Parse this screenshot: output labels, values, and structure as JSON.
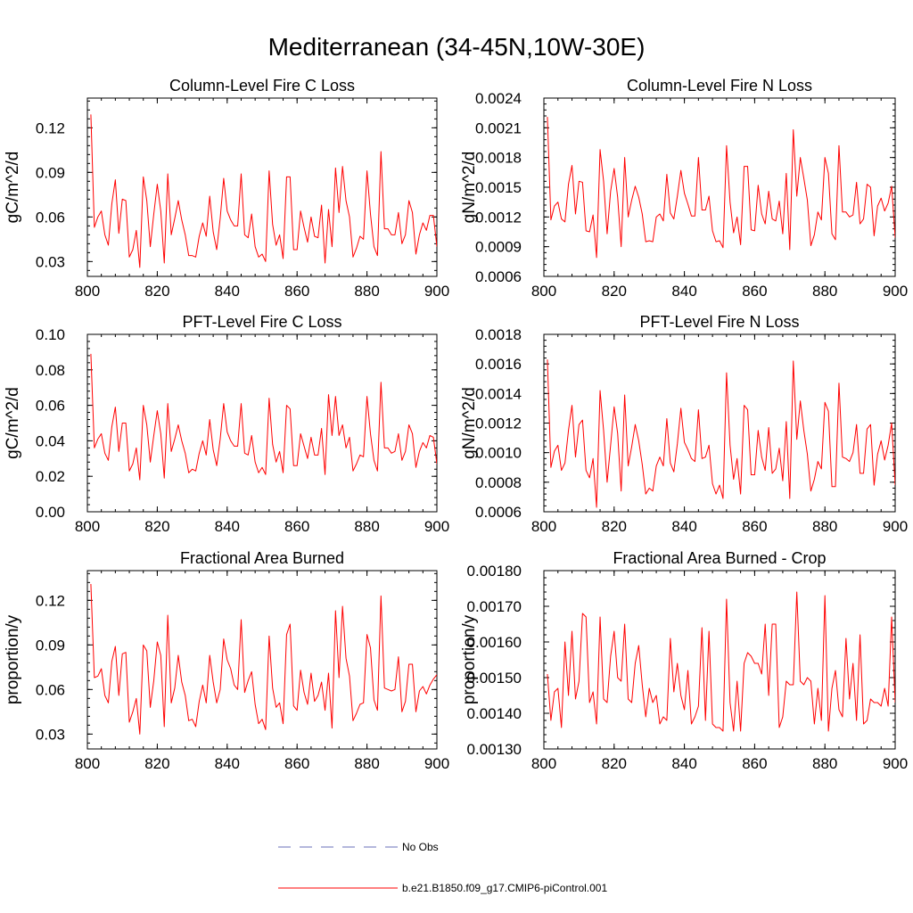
{
  "title": "Mediterranean (34-45N,10W-30E)",
  "colors": {
    "model": "#ff0000",
    "obs": "#6a6fb8",
    "axis": "#000000"
  },
  "legend": [
    {
      "label": "No Obs",
      "style": "dashed",
      "color": "#6a6fb8"
    },
    {
      "label": "b.e21.B1850.f09_g17.CMIP6-piControl.001",
      "style": "solid",
      "color": "#ff0000"
    }
  ],
  "chart_data": [
    {
      "type": "line",
      "title": "Column-Level Fire C Loss",
      "ylabel": "gC/m^2/d",
      "xlim": [
        800,
        900
      ],
      "ylim": [
        0.02,
        0.14
      ],
      "xticks": [
        800,
        820,
        840,
        860,
        880,
        900
      ],
      "xtick_labels": [
        "800",
        "820",
        "840",
        "860",
        "880",
        "900"
      ],
      "yticks": [
        0.03,
        0.06,
        0.09,
        0.12
      ],
      "ytick_labels": [
        "0.03",
        "0.06",
        "0.09",
        "0.12"
      ],
      "series": [
        {
          "name": "b.e21.B1850.f09_g17.CMIP6-piControl.001",
          "x0": 801,
          "values": [
            0.129,
            0.053,
            0.06,
            0.064,
            0.048,
            0.041,
            0.069,
            0.085,
            0.049,
            0.072,
            0.071,
            0.033,
            0.038,
            0.051,
            0.026,
            0.087,
            0.071,
            0.04,
            0.062,
            0.082,
            0.064,
            0.029,
            0.089,
            0.048,
            0.059,
            0.071,
            0.058,
            0.048,
            0.034,
            0.034,
            0.033,
            0.047,
            0.056,
            0.047,
            0.074,
            0.05,
            0.038,
            0.059,
            0.086,
            0.064,
            0.058,
            0.054,
            0.054,
            0.089,
            0.048,
            0.046,
            0.062,
            0.04,
            0.033,
            0.035,
            0.03,
            0.091,
            0.055,
            0.041,
            0.048,
            0.032,
            0.087,
            0.087,
            0.038,
            0.038,
            0.064,
            0.053,
            0.043,
            0.06,
            0.047,
            0.046,
            0.068,
            0.029,
            0.065,
            0.04,
            0.093,
            0.063,
            0.094,
            0.071,
            0.06,
            0.033,
            0.039,
            0.047,
            0.045,
            0.091,
            0.062,
            0.04,
            0.034,
            0.104,
            0.052,
            0.052,
            0.048,
            0.048,
            0.063,
            0.042,
            0.048,
            0.071,
            0.063,
            0.035,
            0.048,
            0.056,
            0.051,
            0.061,
            0.061,
            0.04
          ]
        }
      ]
    },
    {
      "type": "line",
      "title": "Column-Level Fire N Loss",
      "ylabel": "gN/m^2/d",
      "xlim": [
        800,
        900
      ],
      "ylim": [
        0.0006,
        0.0024
      ],
      "xticks": [
        800,
        820,
        840,
        860,
        880,
        900
      ],
      "xtick_labels": [
        "800",
        "820",
        "840",
        "860",
        "880",
        "900"
      ],
      "yticks": [
        0.0006,
        0.0009,
        0.0012,
        0.0015,
        0.0018,
        0.0021,
        0.0024
      ],
      "ytick_labels": [
        "0.0006",
        "0.0009",
        "0.0012",
        "0.0015",
        "0.0018",
        "0.0021",
        "0.0024"
      ],
      "series": [
        {
          "name": "b.e21.B1850.f09_g17.CMIP6-piControl.001",
          "x0": 801,
          "values": [
            0.00221,
            0.00117,
            0.00131,
            0.00135,
            0.00118,
            0.00115,
            0.00153,
            0.00172,
            0.00123,
            0.00156,
            0.00155,
            0.00106,
            0.00105,
            0.00122,
            0.00079,
            0.00188,
            0.00156,
            0.00103,
            0.00146,
            0.00169,
            0.0014,
            0.0009,
            0.0018,
            0.0012,
            0.00137,
            0.00151,
            0.0014,
            0.00123,
            0.00095,
            0.00096,
            0.00095,
            0.0012,
            0.00123,
            0.00116,
            0.00163,
            0.00124,
            0.00118,
            0.00141,
            0.00167,
            0.00144,
            0.00133,
            0.00121,
            0.00121,
            0.0018,
            0.00127,
            0.00127,
            0.00141,
            0.00106,
            0.00095,
            0.00096,
            0.00089,
            0.00192,
            0.00135,
            0.00104,
            0.0012,
            0.00092,
            0.00171,
            0.00171,
            0.00107,
            0.00106,
            0.00152,
            0.00123,
            0.00113,
            0.00146,
            0.00118,
            0.00116,
            0.00136,
            0.00103,
            0.00164,
            0.00087,
            0.00208,
            0.00141,
            0.0018,
            0.00159,
            0.00137,
            0.00091,
            0.00102,
            0.00125,
            0.00117,
            0.0018,
            0.00164,
            0.00103,
            0.00097,
            0.00192,
            0.00125,
            0.00125,
            0.0012,
            0.00122,
            0.00155,
            0.00113,
            0.00118,
            0.00153,
            0.0015,
            0.00101,
            0.00131,
            0.00139,
            0.00126,
            0.00134,
            0.00151,
            0.00099
          ]
        }
      ]
    },
    {
      "type": "line",
      "title": "PFT-Level Fire C Loss",
      "ylabel": "gC/m^2/d",
      "xlim": [
        800,
        900
      ],
      "ylim": [
        0.0,
        0.1
      ],
      "xticks": [
        800,
        820,
        840,
        860,
        880,
        900
      ],
      "xtick_labels": [
        "800",
        "820",
        "840",
        "860",
        "880",
        "900"
      ],
      "yticks": [
        0.0,
        0.02,
        0.04,
        0.06,
        0.08,
        0.1
      ],
      "ytick_labels": [
        "0.00",
        "0.02",
        "0.04",
        "0.06",
        "0.08",
        "0.10"
      ],
      "series": [
        {
          "name": "b.e21.B1850.f09_g17.CMIP6-piControl.001",
          "x0": 801,
          "values": [
            0.089,
            0.036,
            0.041,
            0.044,
            0.033,
            0.029,
            0.048,
            0.059,
            0.034,
            0.05,
            0.05,
            0.023,
            0.027,
            0.036,
            0.018,
            0.06,
            0.049,
            0.028,
            0.043,
            0.057,
            0.044,
            0.019,
            0.061,
            0.034,
            0.041,
            0.049,
            0.04,
            0.033,
            0.022,
            0.024,
            0.023,
            0.033,
            0.04,
            0.032,
            0.052,
            0.035,
            0.026,
            0.041,
            0.061,
            0.045,
            0.04,
            0.037,
            0.037,
            0.061,
            0.033,
            0.032,
            0.043,
            0.028,
            0.022,
            0.025,
            0.021,
            0.064,
            0.038,
            0.028,
            0.034,
            0.022,
            0.06,
            0.058,
            0.026,
            0.026,
            0.044,
            0.037,
            0.03,
            0.042,
            0.032,
            0.032,
            0.047,
            0.021,
            0.066,
            0.043,
            0.065,
            0.043,
            0.049,
            0.036,
            0.042,
            0.023,
            0.027,
            0.032,
            0.031,
            0.065,
            0.044,
            0.029,
            0.023,
            0.073,
            0.036,
            0.036,
            0.033,
            0.034,
            0.044,
            0.029,
            0.034,
            0.049,
            0.044,
            0.025,
            0.034,
            0.039,
            0.036,
            0.043,
            0.042,
            0.027
          ]
        }
      ]
    },
    {
      "type": "line",
      "title": "PFT-Level Fire N Loss",
      "ylabel": "gN/m^2/d",
      "xlim": [
        800,
        900
      ],
      "ylim": [
        0.0006,
        0.0018
      ],
      "xticks": [
        800,
        820,
        840,
        860,
        880,
        900
      ],
      "xtick_labels": [
        "800",
        "820",
        "840",
        "860",
        "880",
        "900"
      ],
      "yticks": [
        0.0006,
        0.0008,
        0.001,
        0.0012,
        0.0014,
        0.0016,
        0.0018
      ],
      "ytick_labels": [
        "0.0006",
        "0.0008",
        "0.0010",
        "0.0012",
        "0.0014",
        "0.0016",
        "0.0018"
      ],
      "series": [
        {
          "name": "b.e21.B1850.f09_g17.CMIP6-piControl.001",
          "x0": 801,
          "values": [
            0.00163,
            0.0009,
            0.00101,
            0.00105,
            0.00088,
            0.00093,
            0.00115,
            0.00132,
            0.00097,
            0.00119,
            0.00122,
            0.00088,
            0.00083,
            0.00096,
            0.00063,
            0.00142,
            0.00115,
            0.0008,
            0.00105,
            0.00131,
            0.00113,
            0.00074,
            0.00139,
            0.00091,
            0.00104,
            0.00119,
            0.00108,
            0.00092,
            0.00072,
            0.00076,
            0.00074,
            0.00091,
            0.00097,
            0.00091,
            0.00123,
            0.00093,
            0.00087,
            0.00106,
            0.0013,
            0.00107,
            0.00102,
            0.00096,
            0.00094,
            0.00129,
            0.00096,
            0.00097,
            0.00105,
            0.00079,
            0.00072,
            0.00078,
            0.00069,
            0.00154,
            0.00105,
            0.00082,
            0.00096,
            0.00072,
            0.00132,
            0.00129,
            0.00085,
            0.00085,
            0.00115,
            0.00097,
            0.00088,
            0.00117,
            0.00086,
            0.00089,
            0.00103,
            0.00081,
            0.00121,
            0.00069,
            0.00162,
            0.00109,
            0.00135,
            0.00115,
            0.00099,
            0.00074,
            0.00082,
            0.00094,
            0.00089,
            0.00134,
            0.00128,
            0.00077,
            0.00077,
            0.00147,
            0.00097,
            0.00096,
            0.00094,
            0.001,
            0.00119,
            0.00086,
            0.00086,
            0.00116,
            0.00119,
            0.00078,
            0.00099,
            0.00108,
            0.00095,
            0.00105,
            0.0012,
            0.00078
          ]
        }
      ]
    },
    {
      "type": "line",
      "title": "Fractional Area Burned",
      "ylabel": "proportion/y",
      "xlim": [
        800,
        900
      ],
      "ylim": [
        0.02,
        0.14
      ],
      "xticks": [
        800,
        820,
        840,
        860,
        880,
        900
      ],
      "xtick_labels": [
        "800",
        "820",
        "840",
        "860",
        "880",
        "900"
      ],
      "yticks": [
        0.03,
        0.06,
        0.09,
        0.12
      ],
      "ytick_labels": [
        "0.03",
        "0.06",
        "0.09",
        "0.12"
      ],
      "series": [
        {
          "name": "b.e21.B1850.f09_g17.CMIP6-piControl.001",
          "x0": 801,
          "values": [
            0.131,
            0.068,
            0.069,
            0.074,
            0.056,
            0.051,
            0.079,
            0.089,
            0.056,
            0.084,
            0.085,
            0.038,
            0.045,
            0.054,
            0.03,
            0.09,
            0.086,
            0.048,
            0.066,
            0.092,
            0.083,
            0.035,
            0.11,
            0.051,
            0.061,
            0.083,
            0.065,
            0.056,
            0.039,
            0.04,
            0.035,
            0.052,
            0.063,
            0.051,
            0.083,
            0.065,
            0.051,
            0.06,
            0.094,
            0.08,
            0.074,
            0.063,
            0.06,
            0.107,
            0.058,
            0.066,
            0.072,
            0.05,
            0.037,
            0.04,
            0.033,
            0.096,
            0.061,
            0.048,
            0.051,
            0.037,
            0.097,
            0.104,
            0.049,
            0.046,
            0.073,
            0.058,
            0.05,
            0.071,
            0.052,
            0.056,
            0.065,
            0.046,
            0.071,
            0.034,
            0.113,
            0.068,
            0.116,
            0.081,
            0.069,
            0.039,
            0.044,
            0.05,
            0.051,
            0.097,
            0.088,
            0.053,
            0.046,
            0.123,
            0.061,
            0.06,
            0.059,
            0.06,
            0.082,
            0.045,
            0.052,
            0.077,
            0.077,
            0.045,
            0.059,
            0.062,
            0.057,
            0.063,
            0.067,
            0.07
          ]
        }
      ]
    },
    {
      "type": "line",
      "title": "Fractional Area Burned - Crop",
      "ylabel": "proportion/y",
      "xlim": [
        800,
        900
      ],
      "ylim": [
        0.0013,
        0.0018
      ],
      "xticks": [
        800,
        820,
        840,
        860,
        880,
        900
      ],
      "xtick_labels": [
        "800",
        "820",
        "840",
        "860",
        "880",
        "900"
      ],
      "yticks": [
        0.0013,
        0.0014,
        0.0015,
        0.0016,
        0.0017,
        0.0018
      ],
      "ytick_labels": [
        "0.00130",
        "0.00140",
        "0.00150",
        "0.00160",
        "0.00170",
        "0.00180"
      ],
      "series": [
        {
          "name": "b.e21.B1850.f09_g17.CMIP6-piControl.001",
          "x0": 801,
          "values": [
            0.00151,
            0.00138,
            0.00146,
            0.00147,
            0.00136,
            0.0016,
            0.00145,
            0.00163,
            0.00144,
            0.00149,
            0.00168,
            0.00167,
            0.00143,
            0.00146,
            0.00137,
            0.00167,
            0.00144,
            0.00143,
            0.00156,
            0.00163,
            0.0015,
            0.00149,
            0.00165,
            0.00144,
            0.00143,
            0.00154,
            0.00159,
            0.00148,
            0.00139,
            0.00147,
            0.00143,
            0.00145,
            0.00137,
            0.00139,
            0.00138,
            0.00161,
            0.00146,
            0.00154,
            0.00145,
            0.00141,
            0.00152,
            0.00137,
            0.00139,
            0.00142,
            0.00164,
            0.00138,
            0.00163,
            0.00137,
            0.00136,
            0.00136,
            0.00135,
            0.00172,
            0.00143,
            0.00135,
            0.00149,
            0.00135,
            0.00154,
            0.00157,
            0.00156,
            0.00154,
            0.00154,
            0.00151,
            0.00165,
            0.00145,
            0.00165,
            0.00165,
            0.00136,
            0.00139,
            0.00149,
            0.00148,
            0.00148,
            0.00174,
            0.00149,
            0.00148,
            0.0015,
            0.00149,
            0.00137,
            0.00147,
            0.00138,
            0.00173,
            0.00135,
            0.00147,
            0.00152,
            0.00141,
            0.00139,
            0.00161,
            0.00144,
            0.00154,
            0.00138,
            0.00162,
            0.00137,
            0.00138,
            0.00144,
            0.00143,
            0.00143,
            0.00142,
            0.00147,
            0.00142,
            0.00167,
            0.00143
          ]
        }
      ]
    }
  ]
}
